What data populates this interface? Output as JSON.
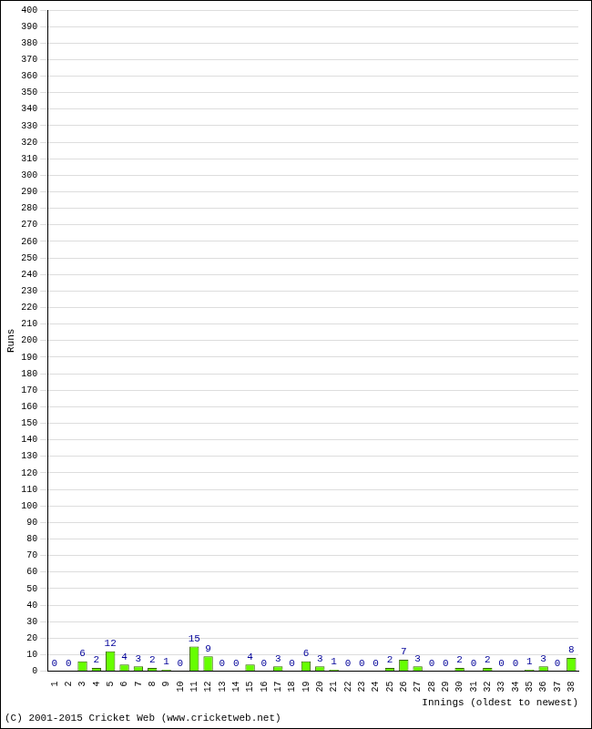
{
  "chart_data": {
    "type": "bar",
    "x_label": "Innings (oldest to newest)",
    "y_label": "Runs",
    "annotations": [
      "(C) 2001-2015 Cricket Web (www.cricketweb.net)"
    ],
    "categories": [
      "1",
      "2",
      "3",
      "4",
      "5",
      "6",
      "7",
      "8",
      "9",
      "10",
      "11",
      "12",
      "13",
      "14",
      "15",
      "16",
      "17",
      "18",
      "19",
      "20",
      "21",
      "22",
      "23",
      "24",
      "25",
      "26",
      "27",
      "28",
      "29",
      "30",
      "31",
      "32",
      "33",
      "34",
      "35",
      "36",
      "37",
      "38"
    ],
    "values": [
      0,
      0,
      6,
      2,
      12,
      4,
      3,
      2,
      1,
      0,
      15,
      9,
      0,
      0,
      4,
      0,
      3,
      0,
      6,
      3,
      1,
      0,
      0,
      0,
      2,
      7,
      3,
      0,
      0,
      2,
      0,
      2,
      0,
      0,
      1,
      3,
      0,
      8
    ],
    "color": "#66ff00",
    "ylim": [
      0,
      400
    ],
    "yticks": [
      0,
      10,
      20,
      30,
      40,
      50,
      60,
      70,
      80,
      90,
      100,
      110,
      120,
      130,
      140,
      150,
      160,
      170,
      180,
      190,
      200,
      210,
      220,
      230,
      240,
      250,
      260,
      270,
      280,
      290,
      300,
      310,
      320,
      330,
      340,
      350,
      360,
      370,
      380,
      390,
      400
    ],
    "grid": true,
    "data_labels": true
  }
}
